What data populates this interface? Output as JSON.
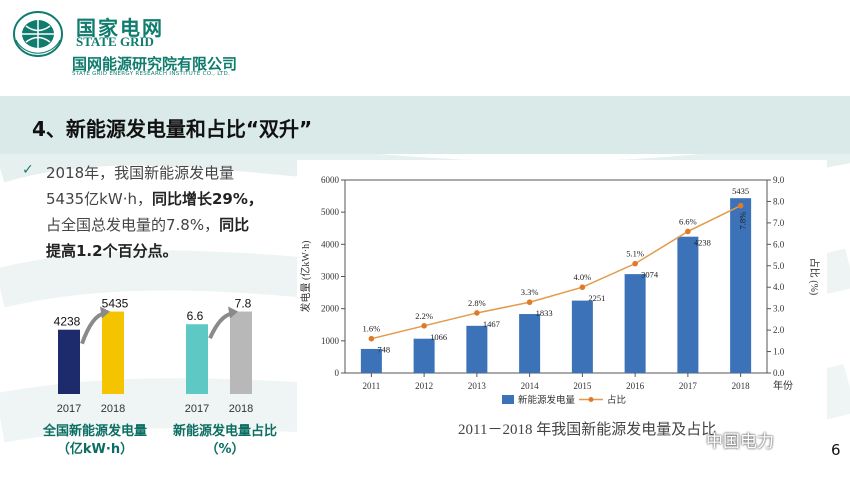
{
  "header": {
    "company_cn": "国家电网",
    "company_en": "STATE GRID",
    "institute_cn": "国网能源研究院有限公司",
    "institute_en": "STATE GRID ENERGY RESEARCH INSTITUTE CO., LTD."
  },
  "title": "4、新能源发电量和占比“双升”",
  "body": {
    "line1": "2018年，我国新能源发电量",
    "line2a": "5435亿kW·h，",
    "line2b": "同比增长29%，",
    "line3a": "占全国总发电量的7.8%，",
    "line3b": "同比",
    "line4": "提高1.2个百分点。"
  },
  "mini_charts": [
    {
      "categories": [
        "2017",
        "2018"
      ],
      "values": [
        4238,
        5435
      ],
      "label_line1": "全国新能源发电量",
      "label_line2": "（亿kW·h）",
      "colors": [
        "#1d2a6b",
        "#f5c400"
      ]
    },
    {
      "categories": [
        "2017",
        "2018"
      ],
      "values": [
        6.6,
        7.8
      ],
      "label_line1": "新能源发电量占比",
      "label_line2": "（%）",
      "colors": [
        "#5ec9c4",
        "#b8b8b8"
      ]
    }
  ],
  "chart_data": {
    "type": "bar",
    "categories": [
      "2011",
      "2012",
      "2013",
      "2014",
      "2015",
      "2016",
      "2017",
      "2018"
    ],
    "series": [
      {
        "name": "新能源发电量",
        "type": "bar",
        "axis": "left",
        "values": [
          748,
          1066,
          1467,
          1833,
          2251,
          3074,
          4238,
          5435
        ]
      },
      {
        "name": "占比",
        "type": "line",
        "axis": "right",
        "values": [
          1.6,
          2.2,
          2.8,
          3.3,
          4.0,
          5.1,
          6.6,
          7.8
        ],
        "labels": [
          "1.6%",
          "2.2%",
          "2.8%",
          "3.3%",
          "4.0%",
          "5.1%",
          "6.6%",
          "7.8%"
        ]
      }
    ],
    "title": "2011－2018 年我国新能源发电量及占比",
    "xlabel": "年份",
    "ylabel": "发电量 (亿kW·h)",
    "y2label": "占比 (%)",
    "ylim": [
      0,
      6000
    ],
    "y2lim": [
      0,
      9
    ],
    "yticks": [
      "0",
      "1000",
      "2000",
      "3000",
      "4000",
      "5000",
      "6000"
    ],
    "y2ticks": [
      "0.0",
      "1.0",
      "2.0",
      "3.0",
      "4.0",
      "5.0",
      "6.0",
      "7.0",
      "8.0",
      "9.0"
    ],
    "legend_position": "bottom",
    "colors": {
      "bar": "#3b72b8",
      "line": "#e39a4a",
      "marker": "#e07a2a"
    }
  },
  "watermark": "中国电力",
  "page_number": "6"
}
